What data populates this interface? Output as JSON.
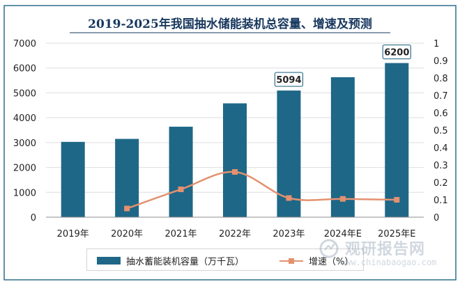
{
  "chart_data": {
    "type": "bar",
    "title": "2019-2025年我国抽水储能装机总容量、增速及预测",
    "categories": [
      "2019年",
      "2020年",
      "2021年",
      "2022年",
      "2023年",
      "2024年E",
      "2025年E"
    ],
    "series": [
      {
        "name": "抽水蓄能装机容量（万千瓦）",
        "type": "bar",
        "axis": "left",
        "color": "#1f6787",
        "values": [
          3029,
          3149,
          3639,
          4579,
          5094,
          5630,
          6200
        ]
      },
      {
        "name": "增速（%）",
        "type": "line",
        "axis": "right",
        "color": "#e3916f",
        "values": [
          null,
          0.05,
          0.16,
          0.26,
          0.11,
          0.105,
          0.1
        ]
      }
    ],
    "data_labels": [
      {
        "category": "2023年",
        "text": "5094"
      },
      {
        "category": "2025年E",
        "text": "6200"
      }
    ],
    "y_left": {
      "min": 0,
      "max": 7000,
      "ticks": [
        "0",
        "1000",
        "2000",
        "3000",
        "4000",
        "5000",
        "6000",
        "7000"
      ]
    },
    "y_right": {
      "min": 0,
      "max": 1,
      "ticks": [
        "0",
        "0.1",
        "0.2",
        "0.3",
        "0.4",
        "0.5",
        "0.6",
        "0.7",
        "0.8",
        "0.9",
        "1"
      ]
    },
    "grid": true,
    "legend_position": "bottom"
  },
  "watermark": {
    "main": "观研报告网",
    "sub": "www.chinabaogao.com"
  },
  "colors": {
    "title": "#17375e",
    "bar": "#1f6787",
    "line": "#e3916f",
    "grid": "#dedede",
    "frame": "#2f6f8a"
  }
}
